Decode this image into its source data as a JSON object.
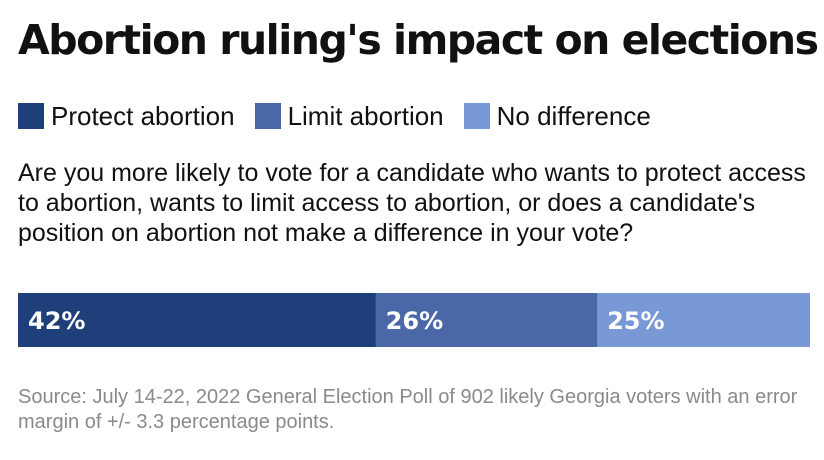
{
  "title": "Abortion ruling's impact on elections",
  "question": "Are you more likely to vote for a candidate who wants to protect access to abortion, wants to limit access to abortion, or does a candidate's position on abortion not make a difference in your vote?",
  "source": "Source: July 14-22, 2022 General Election Poll of 902 likely Georgia voters with an error margin of +/- 3.3 percentage points.",
  "legend": [
    {
      "label": "Protect abortion",
      "color": "#1f3f7a"
    },
    {
      "label": "Limit abortion",
      "color": "#4a67a8"
    },
    {
      "label": "No difference",
      "color": "#7898d6"
    }
  ],
  "chart_data": {
    "type": "bar",
    "orientation": "horizontal-stacked",
    "categories": [
      "Protect abortion",
      "Limit abortion",
      "No difference"
    ],
    "values": [
      42,
      26,
      25
    ],
    "value_labels": [
      "42%",
      "26%",
      "25%"
    ],
    "colors": [
      "#1f3f7a",
      "#4a67a8",
      "#7898d6"
    ],
    "title": "Abortion ruling's impact on elections",
    "legend_position": "top",
    "grid": false
  }
}
